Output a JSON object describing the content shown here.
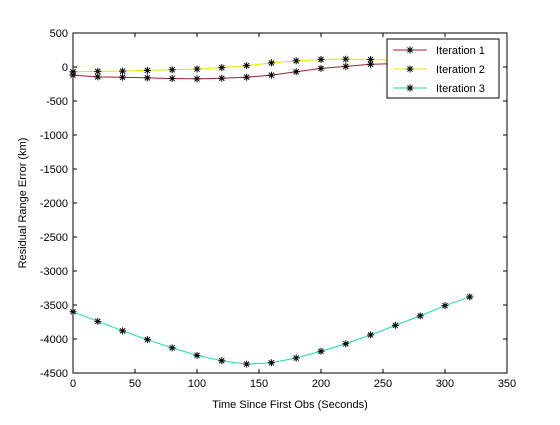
{
  "chart_data": {
    "type": "line",
    "title": "",
    "xlabel": "Time Since First Obs (Seconds)",
    "ylabel": "Residual Range Error (km)",
    "xlim": [
      0,
      350
    ],
    "ylim": [
      -4500,
      500
    ],
    "xticks": [
      0,
      50,
      100,
      150,
      200,
      250,
      300,
      350
    ],
    "yticks": [
      500,
      0,
      -500,
      -1000,
      -1500,
      -2000,
      -2500,
      -3000,
      -3500,
      -4000,
      -4500
    ],
    "grid": false,
    "legend_position": "top-right",
    "x": [
      0,
      20,
      40,
      60,
      80,
      100,
      120,
      140,
      160,
      180,
      200,
      220,
      240,
      260,
      280,
      300,
      320
    ],
    "series": [
      {
        "name": "Iteration 1",
        "color": "#a0202a",
        "values": [
          -120,
          -145,
          -150,
          -160,
          -170,
          -175,
          -165,
          -150,
          -120,
          -70,
          -20,
          10,
          40,
          50,
          55,
          60,
          65
        ]
      },
      {
        "name": "Iteration 2",
        "color": "#e6e600",
        "values": [
          -70,
          -65,
          -60,
          -50,
          -40,
          -30,
          -10,
          20,
          60,
          90,
          110,
          115,
          110,
          100,
          90,
          85,
          80
        ]
      },
      {
        "name": "Iteration 3",
        "color": "#1fd9b0",
        "values": [
          -3600,
          -3740,
          -3880,
          -4010,
          -4130,
          -4240,
          -4320,
          -4370,
          -4350,
          -4280,
          -4180,
          -4070,
          -3940,
          -3800,
          -3660,
          -3510,
          -3380
        ]
      }
    ],
    "marker": "*"
  }
}
